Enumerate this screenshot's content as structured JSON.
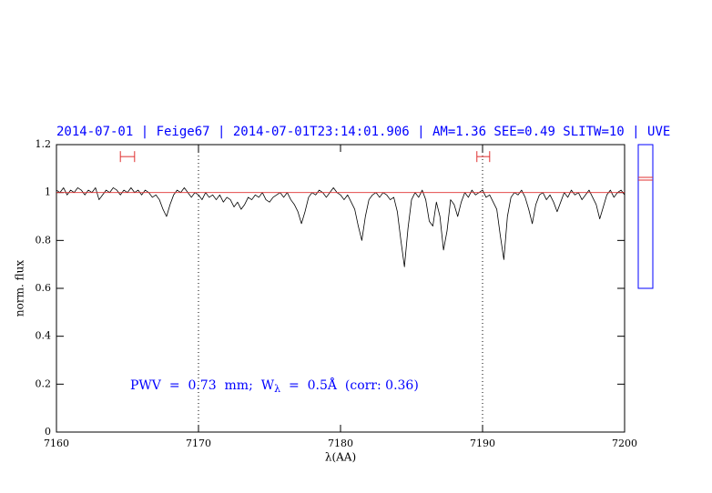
{
  "chart_data": {
    "type": "line",
    "title": "2014-07-01 | Feige67 | 2014-07-01T23:14:01.906 | AM=1.36 SEE=0.49 SLITW=10 | UVE",
    "xlabel": "λ(AA)",
    "ylabel": "norm. flux",
    "annotation": [
      "PWV  =  0.73  mm;  W",
      "λ",
      "  =  0.5Å  (corr: 0.36)"
    ],
    "xlim": [
      7160,
      7200
    ],
    "ylim": [
      0,
      1.2
    ],
    "xticks": [
      7160,
      7170,
      7180,
      7190,
      7200
    ],
    "yticks": [
      0,
      0.2,
      0.4,
      0.6,
      0.8,
      1,
      1.2
    ],
    "vlines": [
      7170,
      7190
    ],
    "ranges": [
      [
        7164.5,
        7165.5
      ],
      [
        7189.6,
        7190.5
      ]
    ],
    "range_level": 1.15,
    "range_color": "#e03030",
    "series": [
      {
        "name": "spectrum",
        "color": "#000000",
        "x": [
          7160,
          7160.25,
          7160.5,
          7160.75,
          7161,
          7161.25,
          7161.5,
          7161.75,
          7162,
          7162.25,
          7162.5,
          7162.75,
          7163,
          7163.25,
          7163.5,
          7163.75,
          7164,
          7164.25,
          7164.5,
          7164.75,
          7165,
          7165.25,
          7165.5,
          7165.75,
          7166,
          7166.25,
          7166.5,
          7166.75,
          7167,
          7167.25,
          7167.5,
          7167.75,
          7168,
          7168.25,
          7168.5,
          7168.75,
          7169,
          7169.25,
          7169.5,
          7169.75,
          7170,
          7170.25,
          7170.5,
          7170.75,
          7171,
          7171.25,
          7171.5,
          7171.75,
          7172,
          7172.25,
          7172.5,
          7172.75,
          7173,
          7173.25,
          7173.5,
          7173.75,
          7174,
          7174.25,
          7174.5,
          7174.75,
          7175,
          7175.25,
          7175.5,
          7175.75,
          7176,
          7176.25,
          7176.5,
          7176.75,
          7177,
          7177.25,
          7177.5,
          7177.75,
          7178,
          7178.25,
          7178.5,
          7178.75,
          7179,
          7179.25,
          7179.5,
          7179.75,
          7180,
          7180.25,
          7180.5,
          7180.75,
          7181,
          7181.25,
          7181.5,
          7181.75,
          7182,
          7182.25,
          7182.5,
          7182.75,
          7183,
          7183.25,
          7183.5,
          7183.75,
          7184,
          7184.25,
          7184.5,
          7184.75,
          7185,
          7185.25,
          7185.5,
          7185.75,
          7186,
          7186.25,
          7186.5,
          7186.75,
          7187,
          7187.25,
          7187.5,
          7187.75,
          7188,
          7188.25,
          7188.5,
          7188.75,
          7189,
          7189.25,
          7189.5,
          7189.75,
          7190,
          7190.25,
          7190.5,
          7190.75,
          7191,
          7191.25,
          7191.5,
          7191.75,
          7192,
          7192.25,
          7192.5,
          7192.75,
          7193,
          7193.25,
          7193.5,
          7193.75,
          7194,
          7194.25,
          7194.5,
          7194.75,
          7195,
          7195.25,
          7195.5,
          7195.75,
          7196,
          7196.25,
          7196.5,
          7196.75,
          7197,
          7197.25,
          7197.5,
          7197.75,
          7198,
          7198.25,
          7198.5,
          7198.75,
          7199,
          7199.25,
          7199.5,
          7199.75,
          7200
        ],
        "values": [
          1.01,
          1.0,
          1.02,
          0.99,
          1.01,
          1.0,
          1.02,
          1.01,
          0.99,
          1.01,
          1.0,
          1.02,
          0.97,
          0.99,
          1.01,
          1.0,
          1.02,
          1.01,
          0.99,
          1.01,
          1.0,
          1.02,
          1.0,
          1.01,
          0.99,
          1.01,
          1.0,
          0.98,
          0.99,
          0.97,
          0.93,
          0.9,
          0.95,
          0.99,
          1.01,
          1.0,
          1.02,
          1.0,
          0.98,
          1.0,
          0.99,
          0.97,
          1.0,
          0.98,
          0.99,
          0.97,
          0.99,
          0.96,
          0.98,
          0.97,
          0.94,
          0.96,
          0.93,
          0.95,
          0.98,
          0.97,
          0.99,
          0.98,
          1.0,
          0.97,
          0.96,
          0.98,
          0.99,
          1.0,
          0.98,
          1.0,
          0.97,
          0.95,
          0.92,
          0.87,
          0.92,
          0.98,
          1.0,
          0.99,
          1.01,
          1.0,
          0.98,
          1.0,
          1.02,
          1.0,
          0.99,
          0.97,
          0.99,
          0.96,
          0.93,
          0.86,
          0.8,
          0.9,
          0.97,
          0.99,
          1.0,
          0.98,
          1.0,
          0.99,
          0.97,
          0.98,
          0.92,
          0.8,
          0.69,
          0.85,
          0.97,
          1.0,
          0.98,
          1.01,
          0.97,
          0.88,
          0.86,
          0.96,
          0.9,
          0.76,
          0.84,
          0.97,
          0.95,
          0.9,
          0.96,
          1.0,
          0.98,
          1.01,
          0.99,
          1.0,
          1.01,
          0.98,
          0.99,
          0.96,
          0.93,
          0.82,
          0.72,
          0.9,
          0.98,
          1.0,
          0.99,
          1.01,
          0.98,
          0.93,
          0.87,
          0.95,
          0.99,
          1.0,
          0.97,
          0.99,
          0.96,
          0.92,
          0.96,
          1.0,
          0.98,
          1.01,
          0.99,
          1.0,
          0.97,
          0.99,
          1.01,
          0.98,
          0.95,
          0.89,
          0.94,
          0.99,
          1.01,
          0.98,
          1.0,
          1.01,
          0.99
        ]
      },
      {
        "name": "model",
        "color": "#e03030",
        "x": [
          7160,
          7200
        ],
        "values": [
          1.0,
          1.0
        ]
      }
    ]
  }
}
